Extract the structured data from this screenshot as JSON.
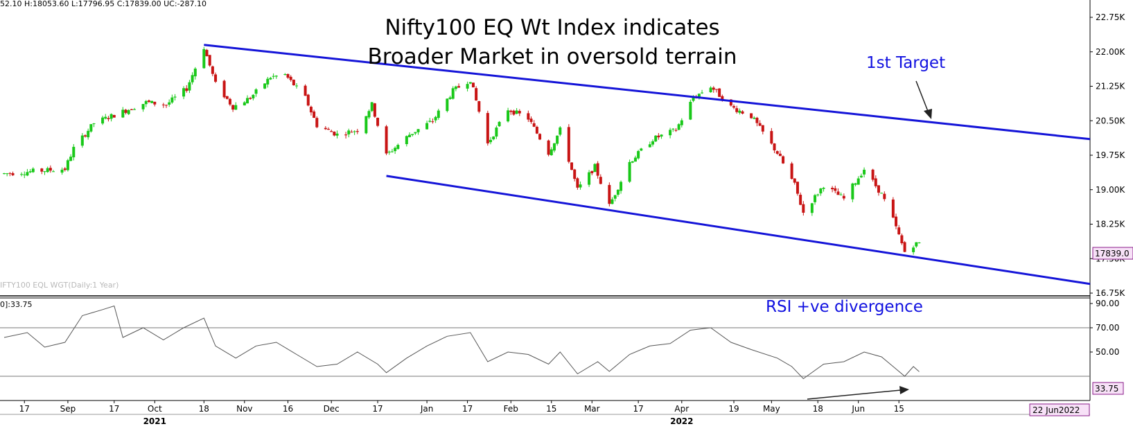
{
  "colors": {
    "channel": "#1414d8",
    "bull": "#19c819",
    "bear": "#c81414",
    "rsi_line": "#555555",
    "badge_bg": "#f7e1f7",
    "badge_border": "#8a1a8a",
    "annotation": "#1010e0"
  },
  "header": {
    "ohlc": "52.10  H:18053.60  L:17796.95  C:17839.00  UC:-287.10",
    "watermark": "IFTY100 EQL WGT(Daily:1 Year)"
  },
  "title_lines": [
    "Nifty100 EQ Wt Index indicates",
    "Broader Market in oversold terrain"
  ],
  "annotations": {
    "target": "1st Target",
    "rsi_divergence": "RSI +ve divergence"
  },
  "rsi_panel": {
    "header": "0]:33.75",
    "value_badge": "33.75",
    "reference_lines": [
      70,
      30
    ]
  },
  "price_badge": "17839.0",
  "date_badge": "22 Jun2022",
  "x_axis": {
    "ticks": [
      "17",
      "Sep",
      "17",
      "Oct",
      "18",
      "Nov",
      "16",
      "Dec",
      "17",
      "Jan",
      "17",
      "Feb",
      "15",
      "Mar",
      "17",
      "Apr",
      "19",
      "May",
      "18",
      "Jun",
      "15"
    ],
    "years": [
      "2021",
      "2022"
    ]
  },
  "chart_data": [
    {
      "type": "candlestick",
      "title": "Nifty100 EQ Wt Index indicates Broader Market in oversold terrain",
      "x_range": [
        "2021-08-10",
        "2022-06-22"
      ],
      "ylim": [
        16750,
        22750
      ],
      "y_ticks": [
        "22.75K",
        "22.00K",
        "21.25K",
        "20.50K",
        "19.75K",
        "19.00K",
        "18.25K",
        "17.50K",
        "16.75K"
      ],
      "y_tick_values": [
        22750,
        22000,
        21250,
        20500,
        19750,
        19000,
        18250,
        17500,
        16750
      ],
      "last_close": 17839.0,
      "last_bar": {
        "high": 18053.6,
        "low": 17796.95,
        "close": 17839.0,
        "change": -287.1
      },
      "approx_close_path": [
        [
          "2021-08-10",
          19350
        ],
        [
          "2021-08-20",
          19400
        ],
        [
          "2021-08-31",
          19450
        ],
        [
          "2021-09-03",
          19900
        ],
        [
          "2021-09-10",
          20450
        ],
        [
          "2021-09-20",
          20700
        ],
        [
          "2021-09-28",
          20900
        ],
        [
          "2021-10-05",
          20850
        ],
        [
          "2021-10-12",
          21200
        ],
        [
          "2021-10-18",
          22100
        ],
        [
          "2021-10-22",
          21300
        ],
        [
          "2021-10-28",
          20800
        ],
        [
          "2021-11-03",
          21000
        ],
        [
          "2021-11-10",
          21450
        ],
        [
          "2021-11-15",
          21500
        ],
        [
          "2021-11-22",
          21000
        ],
        [
          "2021-11-26",
          20400
        ],
        [
          "2021-12-03",
          20200
        ],
        [
          "2021-12-10",
          20300
        ],
        [
          "2021-12-15",
          20850
        ],
        [
          "2021-12-20",
          19750
        ],
        [
          "2021-12-28",
          20200
        ],
        [
          "2022-01-05",
          20500
        ],
        [
          "2022-01-12",
          21150
        ],
        [
          "2022-01-18",
          21400
        ],
        [
          "2022-01-24",
          20000
        ],
        [
          "2022-01-31",
          20750
        ],
        [
          "2022-02-07",
          20550
        ],
        [
          "2022-02-14",
          19800
        ],
        [
          "2022-02-18",
          20300
        ],
        [
          "2022-02-24",
          19000
        ],
        [
          "2022-03-02",
          19500
        ],
        [
          "2022-03-07",
          18650
        ],
        [
          "2022-03-14",
          19600
        ],
        [
          "2022-03-22",
          20100
        ],
        [
          "2022-03-30",
          20300
        ],
        [
          "2022-04-05",
          21000
        ],
        [
          "2022-04-11",
          21250
        ],
        [
          "2022-04-18",
          20800
        ],
        [
          "2022-04-25",
          20600
        ],
        [
          "2022-05-04",
          19800
        ],
        [
          "2022-05-10",
          19100
        ],
        [
          "2022-05-13",
          18500
        ],
        [
          "2022-05-20",
          19100
        ],
        [
          "2022-05-27",
          18800
        ],
        [
          "2022-06-03",
          19450
        ],
        [
          "2022-06-09",
          18900
        ],
        [
          "2022-06-13",
          18350
        ],
        [
          "2022-06-17",
          17650
        ],
        [
          "2022-06-20",
          17800
        ],
        [
          "2022-06-22",
          17839
        ]
      ],
      "channel_lines": [
        {
          "name": "upper",
          "points": [
            [
              "2021-10-18",
              22150
            ],
            [
              "2022-08-20",
              20100
            ]
          ]
        },
        {
          "name": "lower",
          "points": [
            [
              "2021-12-20",
              19300
            ],
            [
              "2022-08-20",
              16950
            ]
          ]
        }
      ]
    },
    {
      "type": "line",
      "ylim": [
        10,
        90
      ],
      "y_ticks": [
        "90.00",
        "70.00",
        "50.00"
      ],
      "y_tick_values": [
        90,
        70,
        50
      ],
      "last_value": 33.75,
      "series": [
        {
          "values": [
            [
              "2021-08-10",
              62
            ],
            [
              "2021-08-18",
              66
            ],
            [
              "2021-08-24",
              54
            ],
            [
              "2021-08-31",
              58
            ],
            [
              "2021-09-06",
              80
            ],
            [
              "2021-09-13",
              85
            ],
            [
              "2021-09-17",
              88
            ],
            [
              "2021-09-20",
              62
            ],
            [
              "2021-09-27",
              70
            ],
            [
              "2021-10-04",
              60
            ],
            [
              "2021-10-11",
              70
            ],
            [
              "2021-10-18",
              78
            ],
            [
              "2021-10-22",
              55
            ],
            [
              "2021-10-29",
              45
            ],
            [
              "2021-11-05",
              55
            ],
            [
              "2021-11-12",
              58
            ],
            [
              "2021-11-19",
              48
            ],
            [
              "2021-11-26",
              38
            ],
            [
              "2021-12-03",
              40
            ],
            [
              "2021-12-10",
              50
            ],
            [
              "2021-12-17",
              40
            ],
            [
              "2021-12-20",
              33
            ],
            [
              "2021-12-27",
              45
            ],
            [
              "2022-01-03",
              55
            ],
            [
              "2022-01-10",
              63
            ],
            [
              "2022-01-18",
              66
            ],
            [
              "2022-01-24",
              42
            ],
            [
              "2022-01-31",
              50
            ],
            [
              "2022-02-07",
              48
            ],
            [
              "2022-02-14",
              40
            ],
            [
              "2022-02-18",
              50
            ],
            [
              "2022-02-24",
              32
            ],
            [
              "2022-03-03",
              42
            ],
            [
              "2022-03-07",
              34
            ],
            [
              "2022-03-14",
              48
            ],
            [
              "2022-03-21",
              55
            ],
            [
              "2022-03-28",
              57
            ],
            [
              "2022-04-04",
              68
            ],
            [
              "2022-04-11",
              70
            ],
            [
              "2022-04-18",
              58
            ],
            [
              "2022-04-25",
              52
            ],
            [
              "2022-05-04",
              45
            ],
            [
              "2022-05-09",
              38
            ],
            [
              "2022-05-13",
              28
            ],
            [
              "2022-05-20",
              40
            ],
            [
              "2022-05-27",
              42
            ],
            [
              "2022-06-03",
              50
            ],
            [
              "2022-06-09",
              46
            ],
            [
              "2022-06-13",
              38
            ],
            [
              "2022-06-17",
              30
            ],
            [
              "2022-06-20",
              38
            ],
            [
              "2022-06-22",
              33.75
            ]
          ]
        }
      ]
    }
  ]
}
